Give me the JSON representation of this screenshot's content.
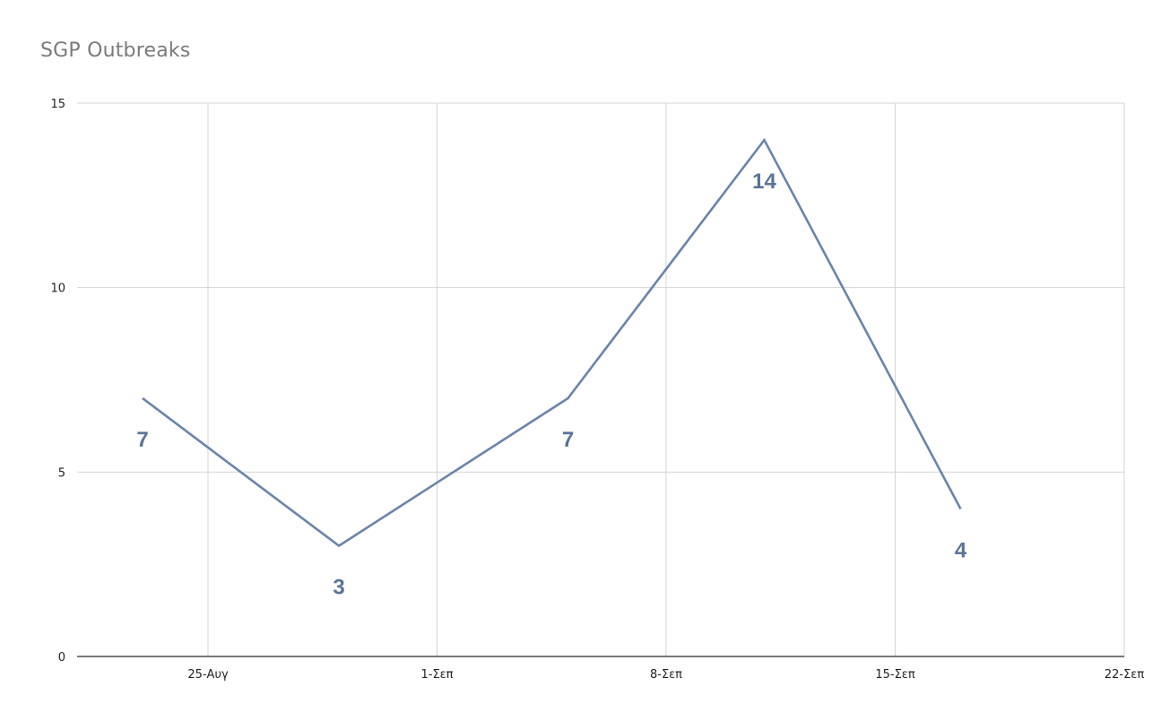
{
  "chart_data": {
    "type": "line",
    "title": "SGP Outbreaks",
    "xlabel": "",
    "ylabel": "",
    "x_ticks": [
      "25-Αυγ",
      "1-Σεπ",
      "8-Σεπ",
      "15-Σεπ",
      "22-Σεπ"
    ],
    "x_tick_dates": [
      "2020-08-25",
      "2020-09-01",
      "2020-09-08",
      "2020-09-15",
      "2020-09-22"
    ],
    "xlim": [
      "2020-08-21",
      "2020-09-22"
    ],
    "y_ticks": [
      "0",
      "5",
      "10",
      "15"
    ],
    "ylim": [
      0,
      15
    ],
    "grid": true,
    "legend": "none",
    "series": [
      {
        "color": "#6b84a8",
        "x": [
          "2020-08-23",
          "2020-08-29",
          "2020-09-05",
          "2020-09-11",
          "2020-09-17"
        ],
        "values": [
          7,
          3,
          7,
          14,
          4
        ],
        "labels": [
          "7",
          "3",
          "7",
          "14",
          "4"
        ]
      }
    ]
  }
}
